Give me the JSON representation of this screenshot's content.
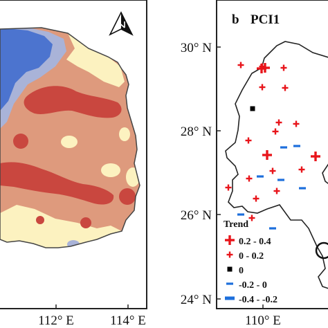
{
  "left_panel": {
    "x_ticks": [
      "112° E",
      "114° E"
    ],
    "colors": {
      "water": "#4c74cf",
      "lavender": "#a9b3d8",
      "cream": "#fcf2c0",
      "salmon": "#de9a7d",
      "dark_red": "#c9473f"
    },
    "north_arrow_icon": "north-arrow-icon"
  },
  "right_panel": {
    "label": "b",
    "title": "PCI1",
    "y_ticks": [
      "30° N",
      "28° N",
      "26° N",
      "24° N"
    ],
    "x_ticks": [
      "110° E"
    ],
    "legend": {
      "title": "Trend",
      "items": [
        {
          "label": "0.2 - 0.4",
          "symbol": "large-plus",
          "color": "#e8151b"
        },
        {
          "label": "0 - 0.2",
          "symbol": "small-plus",
          "color": "#e8151b"
        },
        {
          "label": "0",
          "symbol": "square",
          "color": "#000000"
        },
        {
          "label": "-0.2 - 0",
          "symbol": "small-dash",
          "color": "#1d6fdc"
        },
        {
          "label": "-0.4 - -0.2",
          "symbol": "large-dash",
          "color": "#1d6fdc"
        }
      ]
    },
    "stations": {
      "large_plus": [
        [
          -62,
          1
        ],
        [
          -57,
          2
        ],
        [
          16,
          -126
        ],
        [
          -54,
          -124
        ]
      ],
      "small_plus": [
        [
          -92,
          6
        ],
        [
          -61,
          4
        ],
        [
          -30,
          2
        ],
        [
          -61,
          -26
        ],
        [
          -28,
          -27
        ],
        [
          -37,
          -77
        ],
        [
          -12,
          -79
        ],
        [
          -42,
          -90
        ],
        [
          -81,
          -103
        ],
        [
          -46,
          -147
        ],
        [
          -40,
          -176
        ],
        [
          -4,
          -145
        ],
        [
          -80,
          -158
        ],
        [
          -70,
          -187
        ],
        [
          -110,
          -171
        ],
        [
          -76,
          -215
        ]
      ],
      "square": [
        [
          -75,
          -57
        ]
      ],
      "small_dash": [
        [
          -30,
          -113
        ],
        [
          -64,
          -155
        ],
        [
          -34,
          -160
        ],
        [
          -3,
          -172
        ],
        [
          -92,
          -210
        ],
        [
          -11,
          -111
        ],
        [
          -46,
          -230
        ]
      ],
      "large_dash": []
    }
  }
}
